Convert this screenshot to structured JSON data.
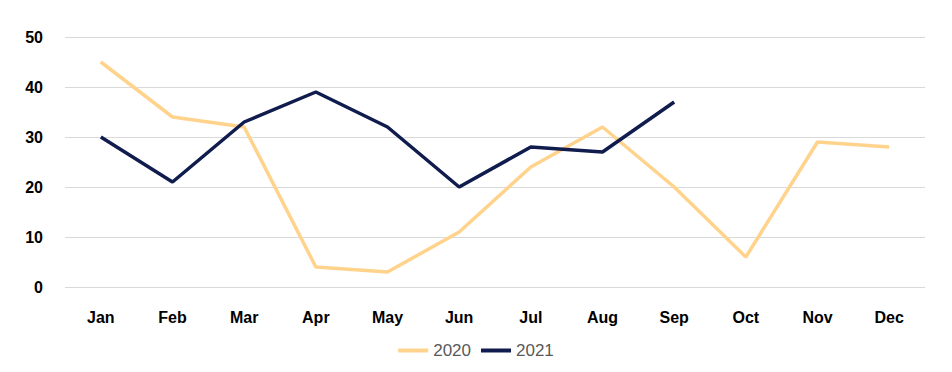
{
  "chart_data": {
    "type": "line",
    "categories": [
      "Jan",
      "Feb",
      "Mar",
      "Apr",
      "May",
      "Jun",
      "Jul",
      "Aug",
      "Sep",
      "Oct",
      "Nov",
      "Dec"
    ],
    "series": [
      {
        "name": "2020",
        "color": "#FFD38C",
        "values": [
          45,
          34,
          32,
          4,
          3,
          11,
          24,
          32,
          20,
          6,
          29,
          28
        ]
      },
      {
        "name": "2021",
        "color": "#0F1C4D",
        "values": [
          30,
          21,
          33,
          39,
          32,
          20,
          28,
          27,
          37,
          null,
          null,
          null
        ]
      }
    ],
    "ylim": [
      0,
      50
    ],
    "yticks": [
      0,
      10,
      20,
      30,
      40,
      50
    ],
    "grid": true,
    "legend": "bottom"
  }
}
